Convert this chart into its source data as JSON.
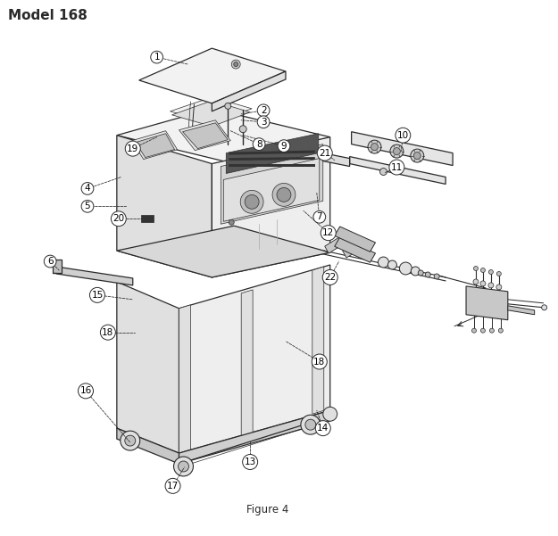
{
  "title": "Model 168",
  "figure_label": "Figure 4",
  "bg_color": "#ffffff",
  "lc": "#2a2a2a",
  "lw_main": 0.9,
  "lw_thin": 0.5,
  "label_fontsize": 7.5,
  "title_fontsize": 11
}
